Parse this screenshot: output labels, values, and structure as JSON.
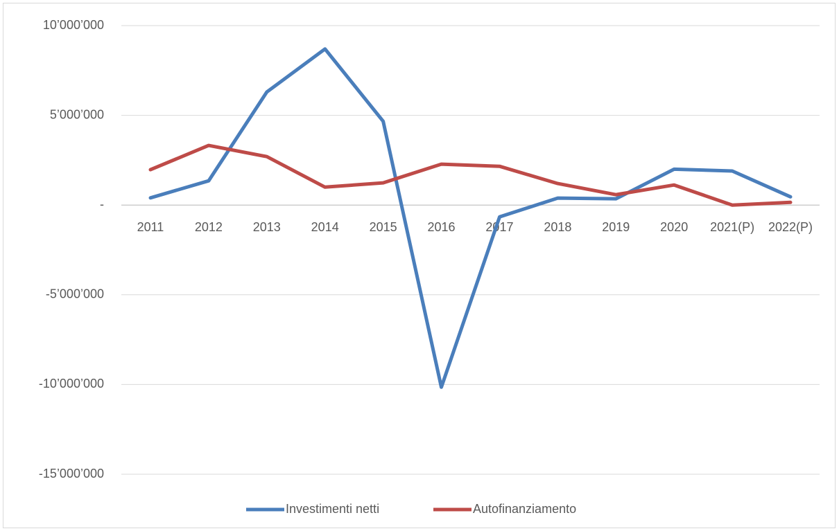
{
  "chart_data": {
    "type": "line",
    "categories": [
      "2011",
      "2012",
      "2013",
      "2014",
      "2015",
      "2016",
      "2017",
      "2018",
      "2019",
      "2020",
      "2021(P)",
      "2022(P)"
    ],
    "series": [
      {
        "name": "Investimenti netti",
        "color": "#4a7ebb",
        "values": [
          400000,
          1350000,
          6300000,
          8700000,
          4670000,
          -10150000,
          -660000,
          390000,
          350000,
          2000000,
          1900000,
          460000
        ]
      },
      {
        "name": "Autofinanziamento",
        "color": "#be4b48",
        "values": [
          1970000,
          3320000,
          2700000,
          1000000,
          1240000,
          2280000,
          2160000,
          1200000,
          580000,
          1120000,
          0,
          150000
        ]
      }
    ],
    "ylim": [
      -15000000,
      10000000
    ],
    "yticks": [
      {
        "value": -15000000,
        "label": "-15’000’000"
      },
      {
        "value": -10000000,
        "label": "-10’000’000"
      },
      {
        "value": -5000000,
        "label": "-5’000’000"
      },
      {
        "value": 0,
        "label": "-"
      },
      {
        "value": 5000000,
        "label": "5’000’000"
      },
      {
        "value": 10000000,
        "label": "10’000’000"
      }
    ],
    "grid": true,
    "legend": "bottom"
  }
}
